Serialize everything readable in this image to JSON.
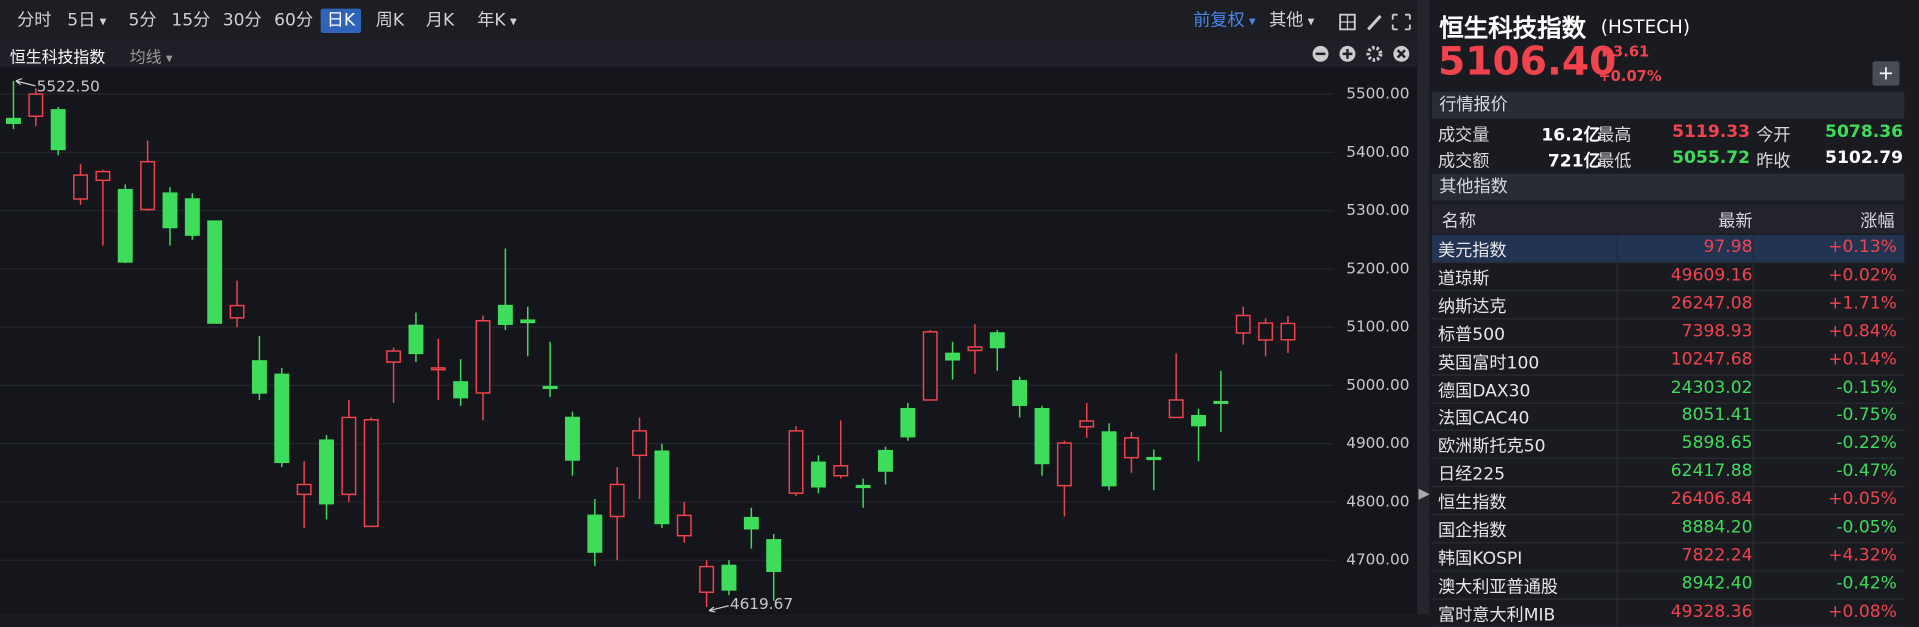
{
  "toolbar": {
    "periods": [
      "分时",
      "5日",
      "5分",
      "15分",
      "30分",
      "60分",
      "日K",
      "周K",
      "月K",
      "年K"
    ],
    "adjust": "前复权",
    "other": "其他"
  },
  "indicator": {
    "name": "恒生科技指数",
    "ma": "均线"
  },
  "chart_data": {
    "type": "candlestick",
    "up_color": "#f0434e",
    "down_color": "#3edc5b",
    "open": [
      5458,
      5462,
      5473,
      5320,
      5352,
      5336,
      5302,
      5330,
      5320,
      5282,
      5116,
      5042,
      5019,
      4813,
      4906,
      4813,
      4758,
      5040,
      5103,
      5027,
      5006,
      4987,
      5137,
      5112,
      4998,
      4945,
      4777,
      4775,
      4880,
      4887,
      4742,
      4645,
      4691,
      4773,
      4735,
      4815,
      4868,
      4845,
      4828,
      4888,
      4960,
      4975,
      5055,
      5060,
      5090,
      5008,
      4960,
      4828,
      4929,
      4920,
      4876,
      4876,
      4945,
      4948,
      4972,
      5090,
      5078,
      5078.36
    ],
    "high": [
      5522.5,
      5510,
      5478,
      5380,
      5370,
      5345,
      5420,
      5340,
      5330,
      5282,
      5180,
      5085,
      5030,
      4870,
      4915,
      4975,
      4945,
      5065,
      5125,
      5080,
      5045,
      5120,
      5235,
      5135,
      5075,
      4955,
      4805,
      4860,
      4945,
      4900,
      4800,
      4700,
      4700,
      4790,
      4745,
      4930,
      4880,
      4940,
      4840,
      4895,
      4970,
      5095,
      5075,
      5105,
      5095,
      5015,
      4965,
      4905,
      4970,
      4935,
      4920,
      4890,
      5055,
      4960,
      5025,
      5135,
      5115,
      5119.33
    ],
    "low": [
      5440,
      5445,
      5395,
      5310,
      5240,
      5210,
      5300,
      5240,
      5250,
      5107,
      5100,
      4975,
      4860,
      4755,
      4770,
      4800,
      4758,
      4970,
      5040,
      4975,
      4965,
      4940,
      5095,
      5050,
      4980,
      4845,
      4690,
      4700,
      4805,
      4755,
      4730,
      4619.67,
      4640,
      4720,
      4630,
      4810,
      4815,
      4840,
      4790,
      4830,
      4905,
      4975,
      5010,
      5020,
      5025,
      4945,
      4845,
      4775,
      4910,
      4820,
      4850,
      4820,
      4945,
      4870,
      4920,
      5070,
      5050,
      5055.72
    ],
    "close": [
      5450,
      5500,
      5405,
      5361,
      5367,
      5212,
      5384,
      5271,
      5258,
      5107,
      5137,
      4987,
      4868,
      4830,
      4797,
      4945,
      4941,
      5059,
      5055,
      5030,
      4979,
      5111,
      5105,
      5108,
      4995,
      4872,
      4714,
      4830,
      4922,
      4763,
      4777,
      4689,
      4649,
      4754,
      4681,
      4922,
      4826,
      4862,
      4825,
      4853,
      4912,
      5092,
      5044,
      5066,
      5065,
      4966,
      4866,
      4901,
      4939,
      4828,
      4910,
      4873,
      4975,
      4931,
      4970,
      5120,
      5107,
      5106.4
    ],
    "ylim": [
      4607,
      5546
    ],
    "yticks": [
      {
        "value": 4700,
        "label": "4700.00"
      },
      {
        "value": 4800,
        "label": "4800.00"
      },
      {
        "value": 4900,
        "label": "4900.00"
      },
      {
        "value": 5000,
        "label": "5000.00"
      },
      {
        "value": 5100,
        "label": "5100.00"
      },
      {
        "value": 5200,
        "label": "5200.00"
      },
      {
        "value": 5300,
        "label": "5300.00"
      },
      {
        "value": 5400,
        "label": "5400.00"
      },
      {
        "value": 5500,
        "label": "5500.00"
      }
    ],
    "grid": true,
    "annotations": {
      "high_label": "5522.50",
      "low_label": "4619.67"
    }
  },
  "quote": {
    "name": "恒生科技指数",
    "code": "(HSTECH)",
    "price": "5106.40",
    "change": "3.61",
    "change_pct": "+0.07%"
  },
  "market": {
    "title": "行情报价",
    "rows": [
      [
        "成交量",
        "16.2亿",
        "最高",
        "5119.33",
        "今开",
        "5078.36"
      ],
      [
        "成交额",
        "721亿",
        "最低",
        "5055.72",
        "昨收",
        "5102.79"
      ]
    ]
  },
  "other_indices": {
    "title": "其他指数",
    "header": [
      "名称",
      "最新",
      "涨幅"
    ],
    "rows": [
      [
        "美元指数",
        "97.98",
        "+0.13%"
      ],
      [
        "道琼斯",
        "49609.16",
        "+0.02%"
      ],
      [
        "纳斯达克",
        "26247.08",
        "+1.71%"
      ],
      [
        "标普500",
        "7398.93",
        "+0.84%"
      ],
      [
        "英国富时100",
        "10247.68",
        "+0.14%"
      ],
      [
        "德国DAX30",
        "24303.02",
        "-0.15%"
      ],
      [
        "法国CAC40",
        "8051.41",
        "-0.75%"
      ],
      [
        "欧洲斯托克50",
        "5898.65",
        "-0.22%"
      ],
      [
        "日经225",
        "62417.88",
        "-0.47%"
      ],
      [
        "恒生指数",
        "26406.84",
        "+0.05%"
      ],
      [
        "国企指数",
        "8884.20",
        "-0.05%"
      ],
      [
        "韩国KOSPI",
        "7822.24",
        "+4.32%"
      ],
      [
        "澳大利亚普通股",
        "8942.40",
        "-0.42%"
      ],
      [
        "富时意大利MIB",
        "49328.36",
        "+0.08%"
      ]
    ]
  }
}
